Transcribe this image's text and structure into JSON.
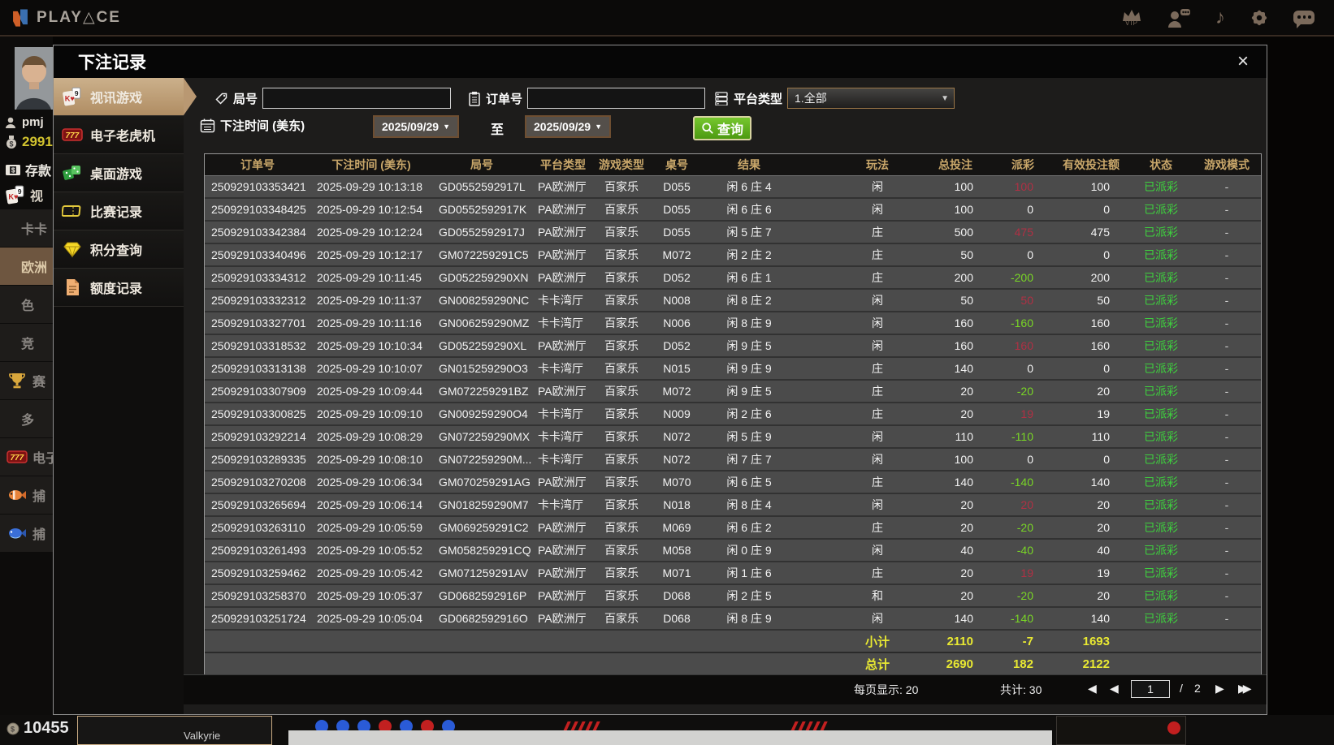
{
  "topbar": {
    "brand": {
      "p1": "PLAY",
      "delta": "△",
      "p2": "CE"
    },
    "vip_label": "VIP"
  },
  "lobby_left": {
    "username": "pmj",
    "balance": "2991",
    "deposit_label": "存款",
    "video_label": "视",
    "tabs": [
      {
        "id": "kaka",
        "label": "卡卡",
        "icon": null,
        "active": false
      },
      {
        "id": "europe",
        "label": "欧洲",
        "icon": null,
        "active": true
      },
      {
        "id": "se",
        "label": "色",
        "icon": null,
        "active": false
      },
      {
        "id": "jing",
        "label": "竞",
        "icon": null,
        "active": false
      },
      {
        "id": "sai",
        "label": "赛",
        "icon": "trophy-icon",
        "active": false
      },
      {
        "id": "duo",
        "label": "多",
        "icon": null,
        "active": false
      },
      {
        "id": "dianzi",
        "label": "电子",
        "icon": "slot-icon",
        "active": false
      },
      {
        "id": "buyu-1",
        "label": "捕",
        "icon": "fish-orange-icon",
        "active": false
      },
      {
        "id": "buyu-2",
        "label": "捕",
        "icon": "fish-blue-icon",
        "active": false
      }
    ]
  },
  "lobby_bottom": {
    "balance": "10455",
    "game_title": "Valkyrie"
  },
  "modal": {
    "title": "下注记录",
    "close_glyph": "×",
    "sidebar": {
      "items": [
        {
          "id": "video-games",
          "label": "视讯游戏",
          "icon": "cards-icon",
          "active": true
        },
        {
          "id": "slots",
          "label": "电子老虎机",
          "icon": "slot-icon",
          "active": false
        },
        {
          "id": "table-games",
          "label": "桌面游戏",
          "icon": "dice-icon",
          "active": false
        },
        {
          "id": "match-records",
          "label": "比赛记录",
          "icon": "ticket-icon",
          "active": false
        },
        {
          "id": "points-query",
          "label": "积分查询",
          "icon": "diamond-icon",
          "active": false
        },
        {
          "id": "quota-records",
          "label": "额度记录",
          "icon": "doc-icon",
          "active": false
        }
      ]
    },
    "filters": {
      "round_label": "局号",
      "order_label": "订单号",
      "platform_label": "平台类型",
      "platform_value": "1.全部",
      "bet_time_label": "下注时间 (美东)",
      "date_from": "2025/09/29",
      "date_to": "2025/09/29",
      "to_label": "至",
      "caret": "▼",
      "search_label": "查询"
    },
    "table": {
      "headers": [
        "订单号",
        "下注时间 (美东)",
        "局号",
        "平台类型",
        "游戏类型",
        "桌号",
        "结果",
        "玩法",
        "总投注",
        "派彩",
        "有效投注额",
        "状态",
        "游戏模式"
      ],
      "rows": [
        [
          "250929103353421",
          "2025-09-29 10:13:18",
          "GD0552592917L",
          "PA欧洲厅",
          "百家乐",
          "D055",
          "闲 6 庄 4",
          "闲",
          "100",
          "100",
          "100",
          "已派彩",
          "-"
        ],
        [
          "250929103348425",
          "2025-09-29 10:12:54",
          "GD0552592917K",
          "PA欧洲厅",
          "百家乐",
          "D055",
          "闲 6 庄 6",
          "闲",
          "100",
          "0",
          "0",
          "已派彩",
          "-"
        ],
        [
          "250929103342384",
          "2025-09-29 10:12:24",
          "GD0552592917J",
          "PA欧洲厅",
          "百家乐",
          "D055",
          "闲 5 庄 7",
          "庄",
          "500",
          "475",
          "475",
          "已派彩",
          "-"
        ],
        [
          "250929103340496",
          "2025-09-29 10:12:17",
          "GM072259291C5",
          "PA欧洲厅",
          "百家乐",
          "M072",
          "闲 2 庄 2",
          "庄",
          "50",
          "0",
          "0",
          "已派彩",
          "-"
        ],
        [
          "250929103334312",
          "2025-09-29 10:11:45",
          "GD052259290XN",
          "PA欧洲厅",
          "百家乐",
          "D052",
          "闲 6 庄 1",
          "庄",
          "200",
          "-200",
          "200",
          "已派彩",
          "-"
        ],
        [
          "250929103332312",
          "2025-09-29 10:11:37",
          "GN008259290NC",
          "卡卡湾厅",
          "百家乐",
          "N008",
          "闲 8 庄 2",
          "闲",
          "50",
          "50",
          "50",
          "已派彩",
          "-"
        ],
        [
          "250929103327701",
          "2025-09-29 10:11:16",
          "GN006259290MZ",
          "卡卡湾厅",
          "百家乐",
          "N006",
          "闲 8 庄 9",
          "闲",
          "160",
          "-160",
          "160",
          "已派彩",
          "-"
        ],
        [
          "250929103318532",
          "2025-09-29 10:10:34",
          "GD052259290XL",
          "PA欧洲厅",
          "百家乐",
          "D052",
          "闲 9 庄 5",
          "闲",
          "160",
          "160",
          "160",
          "已派彩",
          "-"
        ],
        [
          "250929103313138",
          "2025-09-29 10:10:07",
          "GN015259290O3",
          "卡卡湾厅",
          "百家乐",
          "N015",
          "闲 9 庄 9",
          "庄",
          "140",
          "0",
          "0",
          "已派彩",
          "-"
        ],
        [
          "250929103307909",
          "2025-09-29 10:09:44",
          "GM072259291BZ",
          "PA欧洲厅",
          "百家乐",
          "M072",
          "闲 9 庄 5",
          "庄",
          "20",
          "-20",
          "20",
          "已派彩",
          "-"
        ],
        [
          "250929103300825",
          "2025-09-29 10:09:10",
          "GN009259290O4",
          "卡卡湾厅",
          "百家乐",
          "N009",
          "闲 2 庄 6",
          "庄",
          "20",
          "19",
          "19",
          "已派彩",
          "-"
        ],
        [
          "250929103292214",
          "2025-09-29 10:08:29",
          "GN072259290MX",
          "卡卡湾厅",
          "百家乐",
          "N072",
          "闲 5 庄 9",
          "闲",
          "110",
          "-110",
          "110",
          "已派彩",
          "-"
        ],
        [
          "250929103289335",
          "2025-09-29 10:08:10",
          "GN072259290M...",
          "卡卡湾厅",
          "百家乐",
          "N072",
          "闲 7 庄 7",
          "闲",
          "100",
          "0",
          "0",
          "已派彩",
          "-"
        ],
        [
          "250929103270208",
          "2025-09-29 10:06:34",
          "GM070259291AG",
          "PA欧洲厅",
          "百家乐",
          "M070",
          "闲 6 庄 5",
          "庄",
          "140",
          "-140",
          "140",
          "已派彩",
          "-"
        ],
        [
          "250929103265694",
          "2025-09-29 10:06:14",
          "GN018259290M7",
          "卡卡湾厅",
          "百家乐",
          "N018",
          "闲 8 庄 4",
          "闲",
          "20",
          "20",
          "20",
          "已派彩",
          "-"
        ],
        [
          "250929103263110",
          "2025-09-29 10:05:59",
          "GM069259291C2",
          "PA欧洲厅",
          "百家乐",
          "M069",
          "闲 6 庄 2",
          "庄",
          "20",
          "-20",
          "20",
          "已派彩",
          "-"
        ],
        [
          "250929103261493",
          "2025-09-29 10:05:52",
          "GM058259291CQ",
          "PA欧洲厅",
          "百家乐",
          "M058",
          "闲 0 庄 9",
          "闲",
          "40",
          "-40",
          "40",
          "已派彩",
          "-"
        ],
        [
          "250929103259462",
          "2025-09-29 10:05:42",
          "GM071259291AV",
          "PA欧洲厅",
          "百家乐",
          "M071",
          "闲 1 庄 6",
          "庄",
          "20",
          "19",
          "19",
          "已派彩",
          "-"
        ],
        [
          "250929103258370",
          "2025-09-29 10:05:37",
          "GD0682592916P",
          "PA欧洲厅",
          "百家乐",
          "D068",
          "闲 2 庄 5",
          "和",
          "20",
          "-20",
          "20",
          "已派彩",
          "-"
        ],
        [
          "250929103251724",
          "2025-09-29 10:05:04",
          "GD0682592916O",
          "PA欧洲厅",
          "百家乐",
          "D068",
          "闲 8 庄 9",
          "闲",
          "140",
          "-140",
          "140",
          "已派彩",
          "-"
        ]
      ],
      "subtotal": {
        "label": "小计",
        "total_bet": "2110",
        "payout": "-7",
        "valid_bet": "1693"
      },
      "grand_total": {
        "label": "总计",
        "total_bet": "2690",
        "payout": "182",
        "valid_bet": "2122"
      }
    },
    "pagination": {
      "per_page_label": "每页显示: 20",
      "total_label": "共计: 30",
      "current_page": "1",
      "separator": "/",
      "total_pages": "2",
      "first_glyph": "◀",
      "prev_glyph": "◀",
      "next_glyph": "▶",
      "last_glyph": "▶▶"
    }
  },
  "colors": {
    "accent_gold": "#c9a76a",
    "win_red": "#b03044",
    "loss_green": "#79d626",
    "status_green": "#3ed13e",
    "summary_yellow": "#e9e932",
    "active_tab_tan": "#bfa075",
    "search_green": "#5bab1c"
  }
}
